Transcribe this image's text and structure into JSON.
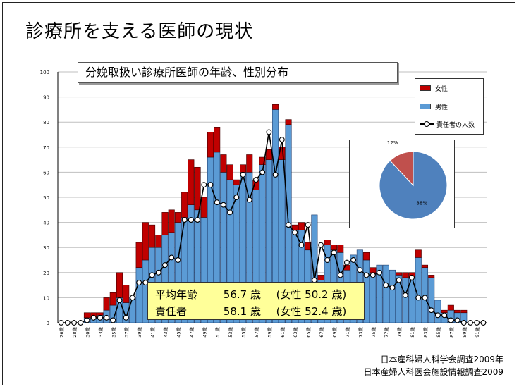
{
  "slide": {
    "title": "診療所を支える医師の現状"
  },
  "chart_title": "分娩取扱い診療所医師の年齢、性別分布",
  "legend": {
    "female": "女性",
    "male": "男性",
    "responsible": "責任者の人数"
  },
  "stats": {
    "avg_label": "平均年齢",
    "avg_value": "56.7 歳",
    "avg_female": "(女性 50.2 歳)",
    "resp_label": "責任者",
    "resp_value": "58.1 歳",
    "resp_female": "(女性 52.4 歳)"
  },
  "sources": [
    "日本産科婦人科学会調査2009年",
    "日本産婦人科医会施設情報調査2009"
  ],
  "colors": {
    "male": "#5b9bd5",
    "female": "#c00000",
    "pie_male": "#4f81bd",
    "pie_female": "#c0504d"
  },
  "chart_data": [
    {
      "type": "bar",
      "stacked": true,
      "title": "分娩取扱い診療所医師の年齢、性別分布",
      "ylim": [
        0,
        100
      ],
      "yticks": [
        0,
        10,
        20,
        30,
        40,
        50,
        60,
        70,
        80,
        90,
        100
      ],
      "x": [
        26,
        27,
        28,
        29,
        30,
        31,
        32,
        33,
        34,
        35,
        36,
        37,
        38,
        39,
        40,
        41,
        42,
        43,
        44,
        45,
        46,
        47,
        48,
        49,
        50,
        51,
        52,
        53,
        54,
        55,
        56,
        57,
        58,
        59,
        60,
        61,
        62,
        63,
        64,
        65,
        66,
        67,
        68,
        69,
        70,
        71,
        72,
        73,
        74,
        75,
        76,
        77,
        78,
        79,
        80,
        81,
        82,
        83,
        84,
        85,
        86,
        87,
        88,
        89,
        90,
        91
      ],
      "xtick_labels": [
        "26歳",
        "28歳",
        "30歳",
        "33歳",
        "35歳",
        "37歳",
        "39歳",
        "41歳",
        "43歳",
        "45歳",
        "47歳",
        "49歳",
        "51歳",
        "53歳",
        "55歳",
        "57歳",
        "59歳",
        "61歳",
        "63歳",
        "65歳",
        "67歳",
        "69歳",
        "71歳",
        "73歳",
        "75歳",
        "77歳",
        "79歳",
        "81歳",
        "83歳",
        "85歳",
        "87歳",
        "89歳",
        "91歳"
      ],
      "legend_position": "top-right",
      "series": [
        {
          "name": "男性",
          "values": [
            0,
            0,
            0,
            0,
            2,
            2,
            3,
            5,
            7,
            10,
            8,
            10,
            22,
            25,
            30,
            30,
            35,
            36,
            40,
            42,
            47,
            45,
            42,
            66,
            68,
            60,
            57,
            55,
            60,
            60,
            53,
            63,
            65,
            85,
            65,
            79,
            37,
            37,
            29,
            43,
            17,
            31,
            29,
            28,
            21,
            27,
            29,
            25,
            20,
            23,
            23,
            21,
            19,
            18,
            18,
            26,
            22,
            18,
            9,
            4,
            5,
            4,
            4,
            0,
            0,
            0
          ],
          "values_female": [
            0,
            0,
            0,
            0,
            2,
            2,
            1,
            5,
            5,
            10,
            7,
            0,
            10,
            15,
            9,
            5,
            9,
            9,
            4,
            10,
            18,
            17,
            8,
            10,
            10,
            7,
            6,
            2,
            3,
            7,
            4,
            3,
            4,
            2,
            5,
            2,
            2,
            3,
            3,
            0,
            2,
            2,
            2,
            3,
            2,
            0,
            0,
            3,
            2,
            0,
            0,
            0,
            1,
            2,
            2,
            3,
            1,
            1,
            0,
            1,
            2,
            1,
            1,
            0,
            0,
            0
          ]
        },
        {
          "name": "女性",
          "values": [
            0,
            0,
            0,
            0,
            2,
            2,
            1,
            5,
            5,
            10,
            7,
            0,
            10,
            15,
            9,
            5,
            9,
            9,
            4,
            10,
            18,
            17,
            8,
            10,
            10,
            7,
            6,
            2,
            3,
            7,
            4,
            3,
            4,
            2,
            5,
            2,
            2,
            3,
            3,
            0,
            2,
            2,
            2,
            3,
            2,
            0,
            0,
            3,
            2,
            0,
            0,
            0,
            1,
            2,
            2,
            3,
            1,
            1,
            0,
            1,
            2,
            1,
            1,
            0,
            0,
            0
          ]
        },
        {
          "name": "責任者の人数",
          "type": "line",
          "values": [
            0,
            0,
            0,
            0,
            1,
            2,
            2,
            2,
            1,
            9,
            2,
            10,
            16,
            16,
            19,
            20,
            23,
            26,
            25,
            41,
            41,
            41,
            55,
            55,
            48,
            47,
            44,
            50,
            59,
            49,
            57,
            60,
            76,
            59,
            73,
            39,
            36,
            31,
            39,
            17,
            31,
            25,
            28,
            19,
            24,
            25,
            21,
            19,
            19,
            20,
            15,
            14,
            17,
            11,
            18,
            10,
            10,
            5,
            3,
            3,
            1,
            1,
            0,
            0,
            0,
            0
          ]
        }
      ]
    },
    {
      "type": "pie",
      "slices": [
        {
          "name": "男性",
          "value": 88,
          "label": "88%"
        },
        {
          "name": "女性",
          "value": 12,
          "label": "12%"
        }
      ]
    }
  ]
}
